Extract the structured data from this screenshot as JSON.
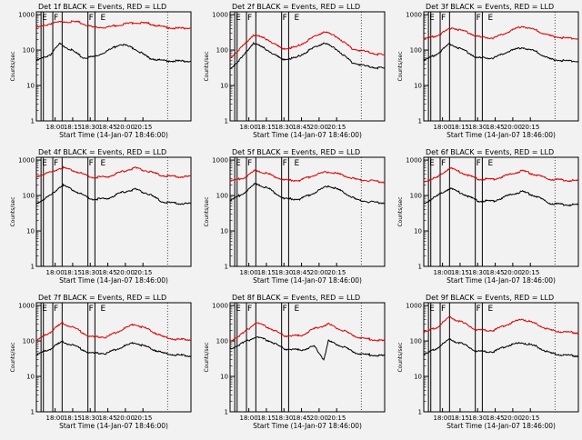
{
  "panels": [
    {
      "title": "Det 1f BLACK = Events, RED = LLD",
      "red": [
        [
          0,
          420
        ],
        [
          12,
          560
        ],
        [
          24,
          640
        ],
        [
          36,
          610
        ],
        [
          48,
          440
        ],
        [
          60,
          440
        ],
        [
          72,
          520
        ],
        [
          84,
          600
        ],
        [
          96,
          560
        ],
        [
          108,
          450
        ],
        [
          120,
          410
        ],
        [
          132,
          420
        ]
      ],
      "black": [
        [
          0,
          50
        ],
        [
          12,
          75
        ],
        [
          20,
          150
        ],
        [
          30,
          100
        ],
        [
          40,
          60
        ],
        [
          50,
          65
        ],
        [
          62,
          100
        ],
        [
          72,
          150
        ],
        [
          84,
          110
        ],
        [
          96,
          60
        ],
        [
          108,
          50
        ],
        [
          132,
          48
        ]
      ]
    },
    {
      "title": "Det 2f BLACK = Events, RED = LLD",
      "red": [
        [
          0,
          60
        ],
        [
          10,
          120
        ],
        [
          20,
          270
        ],
        [
          32,
          200
        ],
        [
          44,
          110
        ],
        [
          56,
          120
        ],
        [
          68,
          200
        ],
        [
          80,
          330
        ],
        [
          92,
          230
        ],
        [
          104,
          110
        ],
        [
          116,
          90
        ],
        [
          132,
          70
        ]
      ],
      "black": [
        [
          0,
          30
        ],
        [
          10,
          60
        ],
        [
          20,
          160
        ],
        [
          32,
          100
        ],
        [
          44,
          55
        ],
        [
          56,
          60
        ],
        [
          68,
          100
        ],
        [
          80,
          160
        ],
        [
          92,
          100
        ],
        [
          104,
          45
        ],
        [
          116,
          35
        ],
        [
          132,
          30
        ]
      ]
    },
    {
      "title": "Det 3f BLACK = Events, RED = LLD",
      "red": [
        [
          0,
          200
        ],
        [
          12,
          260
        ],
        [
          24,
          430
        ],
        [
          36,
          330
        ],
        [
          48,
          230
        ],
        [
          60,
          220
        ],
        [
          72,
          320
        ],
        [
          84,
          480
        ],
        [
          96,
          360
        ],
        [
          108,
          250
        ],
        [
          120,
          220
        ],
        [
          132,
          210
        ]
      ],
      "black": [
        [
          0,
          50
        ],
        [
          12,
          80
        ],
        [
          22,
          150
        ],
        [
          34,
          100
        ],
        [
          46,
          60
        ],
        [
          60,
          60
        ],
        [
          72,
          90
        ],
        [
          84,
          120
        ],
        [
          96,
          90
        ],
        [
          108,
          55
        ],
        [
          120,
          50
        ],
        [
          132,
          48
        ]
      ]
    },
    {
      "title": "Det 4f BLACK = Events, RED = LLD",
      "red": [
        [
          0,
          350
        ],
        [
          12,
          450
        ],
        [
          22,
          620
        ],
        [
          34,
          480
        ],
        [
          46,
          330
        ],
        [
          60,
          330
        ],
        [
          72,
          460
        ],
        [
          84,
          600
        ],
        [
          96,
          480
        ],
        [
          108,
          360
        ],
        [
          120,
          340
        ],
        [
          132,
          340
        ]
      ],
      "black": [
        [
          0,
          60
        ],
        [
          12,
          100
        ],
        [
          22,
          200
        ],
        [
          34,
          130
        ],
        [
          46,
          80
        ],
        [
          60,
          80
        ],
        [
          72,
          120
        ],
        [
          84,
          150
        ],
        [
          96,
          110
        ],
        [
          108,
          65
        ],
        [
          120,
          60
        ],
        [
          132,
          58
        ]
      ]
    },
    {
      "title": "Det 5f BLACK = Events, RED = LLD",
      "red": [
        [
          0,
          250
        ],
        [
          12,
          320
        ],
        [
          22,
          520
        ],
        [
          34,
          390
        ],
        [
          46,
          270
        ],
        [
          60,
          270
        ],
        [
          72,
          380
        ],
        [
          84,
          470
        ],
        [
          96,
          380
        ],
        [
          108,
          280
        ],
        [
          120,
          260
        ],
        [
          132,
          240
        ]
      ],
      "black": [
        [
          0,
          70
        ],
        [
          12,
          120
        ],
        [
          22,
          220
        ],
        [
          34,
          150
        ],
        [
          46,
          80
        ],
        [
          60,
          80
        ],
        [
          72,
          120
        ],
        [
          84,
          190
        ],
        [
          96,
          130
        ],
        [
          108,
          75
        ],
        [
          120,
          65
        ],
        [
          132,
          62
        ]
      ]
    },
    {
      "title": "Det 6f BLACK = Events, RED = LLD",
      "red": [
        [
          0,
          250
        ],
        [
          12,
          330
        ],
        [
          22,
          600
        ],
        [
          34,
          420
        ],
        [
          46,
          290
        ],
        [
          60,
          290
        ],
        [
          72,
          380
        ],
        [
          84,
          500
        ],
        [
          96,
          380
        ],
        [
          108,
          290
        ],
        [
          120,
          270
        ],
        [
          132,
          260
        ]
      ],
      "black": [
        [
          0,
          60
        ],
        [
          12,
          100
        ],
        [
          22,
          160
        ],
        [
          34,
          110
        ],
        [
          46,
          70
        ],
        [
          60,
          70
        ],
        [
          72,
          100
        ],
        [
          84,
          130
        ],
        [
          96,
          95
        ],
        [
          108,
          60
        ],
        [
          120,
          55
        ],
        [
          132,
          55
        ]
      ]
    },
    {
      "title": "Det 7f BLACK = Events, RED = LLD",
      "red": [
        [
          0,
          100
        ],
        [
          12,
          180
        ],
        [
          22,
          320
        ],
        [
          34,
          220
        ],
        [
          46,
          130
        ],
        [
          60,
          130
        ],
        [
          72,
          200
        ],
        [
          84,
          300
        ],
        [
          96,
          210
        ],
        [
          108,
          130
        ],
        [
          120,
          110
        ],
        [
          132,
          110
        ]
      ],
      "black": [
        [
          0,
          40
        ],
        [
          12,
          60
        ],
        [
          22,
          95
        ],
        [
          34,
          70
        ],
        [
          46,
          45
        ],
        [
          60,
          45
        ],
        [
          72,
          65
        ],
        [
          84,
          90
        ],
        [
          96,
          65
        ],
        [
          108,
          45
        ],
        [
          120,
          40
        ],
        [
          132,
          38
        ]
      ]
    },
    {
      "title": "Det 8f BLACK = Events, RED = LLD",
      "red": [
        [
          0,
          100
        ],
        [
          12,
          170
        ],
        [
          22,
          330
        ],
        [
          34,
          230
        ],
        [
          46,
          140
        ],
        [
          60,
          140
        ],
        [
          72,
          220
        ],
        [
          84,
          300
        ],
        [
          96,
          200
        ],
        [
          108,
          130
        ],
        [
          120,
          110
        ],
        [
          132,
          100
        ]
      ],
      "black": [
        [
          0,
          60
        ],
        [
          12,
          90
        ],
        [
          22,
          130
        ],
        [
          34,
          100
        ],
        [
          46,
          60
        ],
        [
          60,
          55
        ],
        [
          72,
          70
        ],
        [
          80,
          30
        ],
        [
          84,
          100
        ],
        [
          96,
          70
        ],
        [
          108,
          45
        ],
        [
          120,
          40
        ],
        [
          132,
          38
        ]
      ]
    },
    {
      "title": "Det 9f BLACK = Events, RED = LLD",
      "red": [
        [
          0,
          170
        ],
        [
          12,
          250
        ],
        [
          22,
          470
        ],
        [
          34,
          320
        ],
        [
          46,
          200
        ],
        [
          60,
          200
        ],
        [
          72,
          300
        ],
        [
          84,
          420
        ],
        [
          96,
          300
        ],
        [
          108,
          200
        ],
        [
          120,
          180
        ],
        [
          132,
          170
        ]
      ],
      "black": [
        [
          0,
          40
        ],
        [
          12,
          65
        ],
        [
          22,
          110
        ],
        [
          34,
          80
        ],
        [
          46,
          50
        ],
        [
          60,
          50
        ],
        [
          72,
          75
        ],
        [
          84,
          90
        ],
        [
          96,
          70
        ],
        [
          108,
          45
        ],
        [
          120,
          40
        ],
        [
          132,
          38
        ]
      ]
    }
  ],
  "chart_data": {
    "type": "line",
    "xlabel": "Start Time (14-Jan-07 18:46:00)",
    "ylabel": "Counts/sec",
    "xticks": [
      "18:00",
      "18:15",
      "18:30",
      "18:45",
      "20:00",
      "20:15"
    ],
    "yticks": [
      "1",
      "10",
      "100",
      "1000"
    ],
    "ylim": [
      1,
      1200
    ],
    "yscale": "log",
    "markers": [
      "E",
      "F",
      "F",
      "E"
    ],
    "series_colors": {
      "red": "#dd0000",
      "black": "#000000"
    },
    "grid": false
  }
}
